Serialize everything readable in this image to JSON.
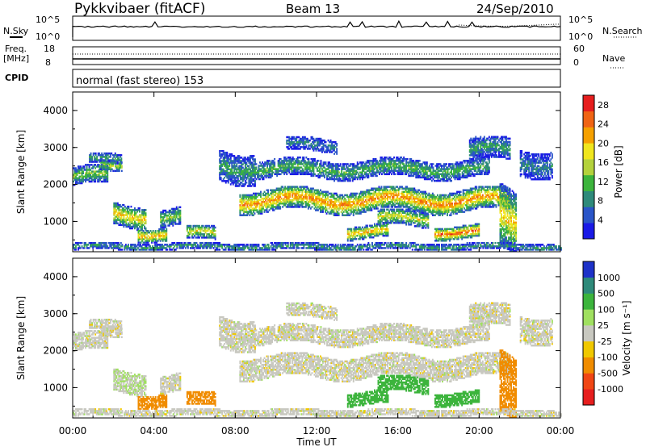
{
  "header": {
    "station": "Pykkvibaer (fitACF)",
    "beam": "Beam 13",
    "date": "24/Sep/2010"
  },
  "strip_labels": {
    "nsky": "N.Sky",
    "nsky_ticks": [
      "10^5",
      "10^0"
    ],
    "nsearch": "N.Search",
    "nsearch_ticks": [
      "10^5",
      "10^0"
    ],
    "freq_line1": "Freq.",
    "freq_line2": "[MHz]",
    "freq_ticks": [
      "18",
      "8"
    ],
    "nave": "Nave",
    "nave_ticks": [
      "60",
      "0"
    ],
    "cpid": "CPID",
    "cpid_text": "normal (fast stereo) 153"
  },
  "chart_data": [
    {
      "type": "heatmap",
      "name": "power",
      "ylabel": "Slant Range [km]",
      "yticks": [
        "1000",
        "2000",
        "3000",
        "4000"
      ],
      "ylim": [
        180,
        4500
      ],
      "xlim": [
        0,
        24
      ],
      "colorbar_label": "Power [dB]",
      "colorbar_ticks": [
        "4",
        "8",
        "12",
        "16",
        "20",
        "24",
        "28"
      ],
      "colorbar_range": [
        0,
        30
      ],
      "colors": [
        "#1a1ae6",
        "#2a55c8",
        "#2e8a7a",
        "#3cb43c",
        "#b4d23c",
        "#f0e61e",
        "#f5a000",
        "#f06414",
        "#e61e1e"
      ]
    },
    {
      "type": "heatmap",
      "name": "velocity",
      "ylabel": "Slant Range [km]",
      "yticks": [
        "1000",
        "2000",
        "3000",
        "4000"
      ],
      "ylim": [
        180,
        4500
      ],
      "xlim": [
        0,
        24
      ],
      "colorbar_label": "Velocity [m s⁻¹]",
      "colorbar_ticks": [
        "1000",
        "500",
        "100",
        "25",
        "-25",
        "-100",
        "-500",
        "-1000"
      ],
      "colors": [
        "#1e32c8",
        "#2e8a7a",
        "#3cb43c",
        "#a0e060",
        "#c8c8c0",
        "#f0c800",
        "#f08c00",
        "#f04614",
        "#e61e1e"
      ]
    }
  ],
  "xaxis": {
    "ticks": [
      "00:00",
      "04:00",
      "08:00",
      "12:00",
      "16:00",
      "20:00",
      "00:00"
    ],
    "label": "Time UT"
  }
}
